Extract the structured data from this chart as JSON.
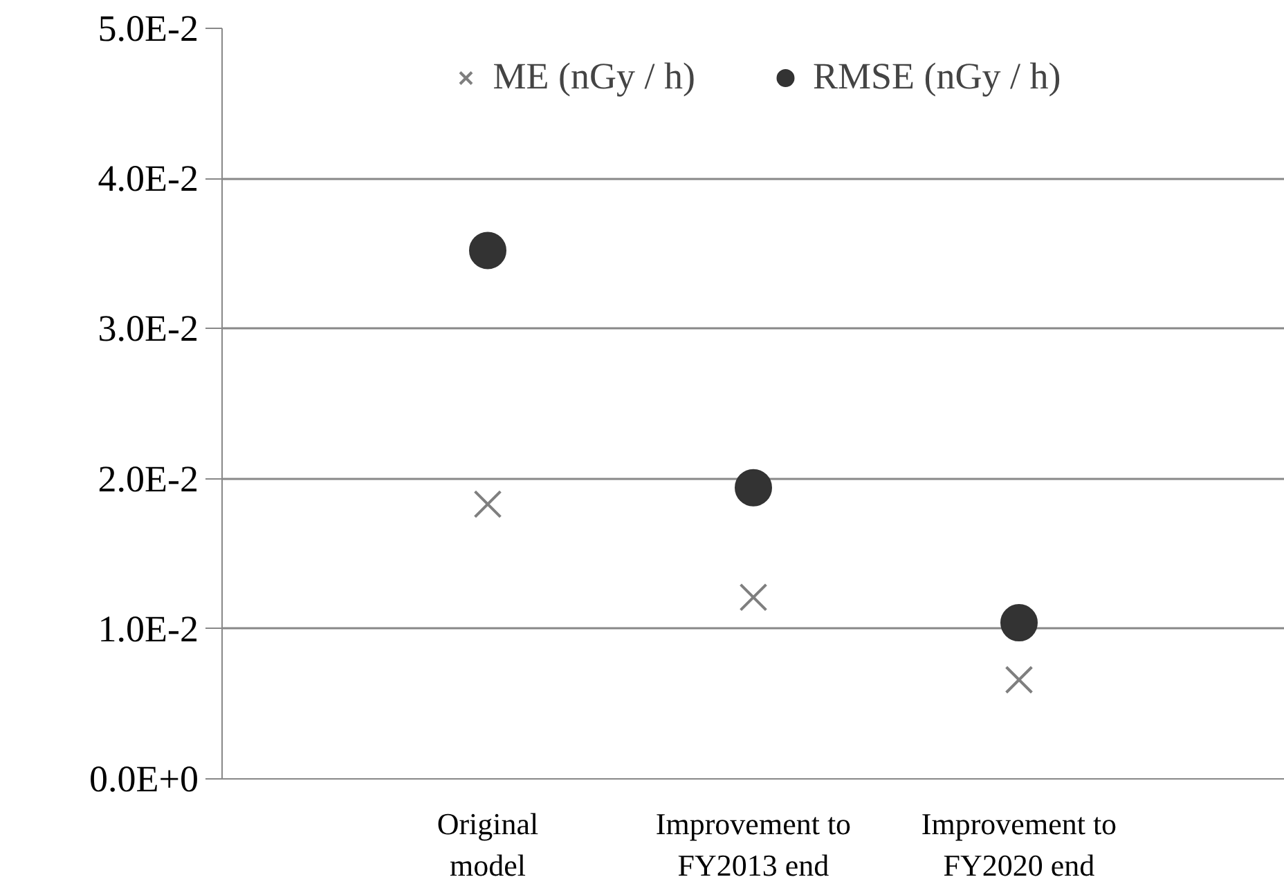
{
  "chart_data": {
    "type": "scatter",
    "categories": [
      "Original\nmodel",
      "Improvement to\nFY2013 end",
      "Improvement to\nFY2020 end"
    ],
    "series": [
      {
        "name": "ME (nGy / h)",
        "color": "#7f7f7f",
        "marker": "cross",
        "values": [
          0.0183,
          0.0121,
          0.0066
        ]
      },
      {
        "name": "RMSE (nGy / h)",
        "color": "#333333",
        "marker": "circle",
        "values": [
          0.0352,
          0.0194,
          0.0104
        ]
      }
    ],
    "ylim": [
      0,
      0.05
    ],
    "yticks": [
      {
        "value": 0,
        "label": "0.0E+0"
      },
      {
        "value": 0.01,
        "label": "1.0E-2"
      },
      {
        "value": 0.02,
        "label": "2.0E-2"
      },
      {
        "value": 0.03,
        "label": "3.0E-2"
      },
      {
        "value": 0.04,
        "label": "4.0E-2"
      },
      {
        "value": 0.05,
        "label": "5.0E-2"
      }
    ],
    "grid": "y",
    "legend": "top"
  }
}
